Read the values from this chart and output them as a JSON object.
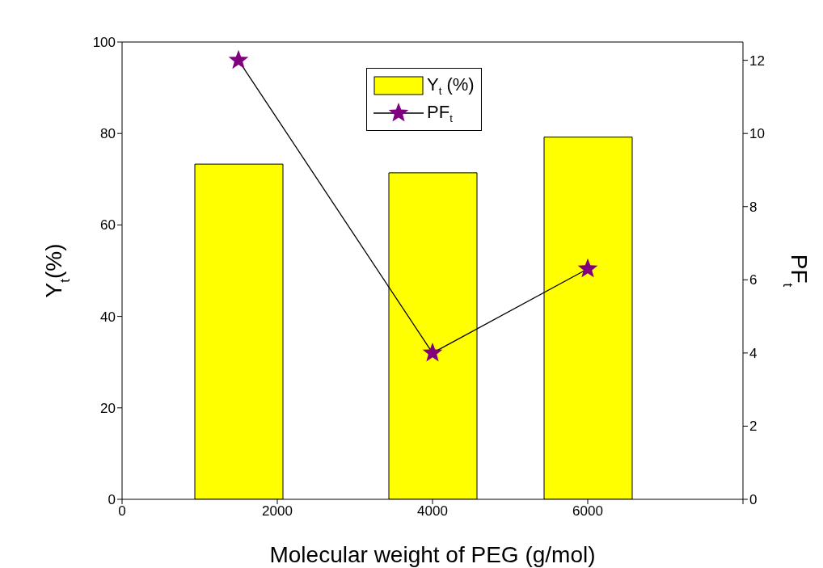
{
  "chart_data": {
    "type": "bar",
    "xlabel": "Molecular weight of PEG (g/mol)",
    "ylabel": "Y$_{t}$(%)",
    "y2label": "PF$_{t}$",
    "x": [
      1500,
      4000,
      6000
    ],
    "series": [
      {
        "name": "Y$_{t}$ (%)",
        "color": "#ffff00",
        "values": [
          73.3,
          71.4,
          79.2
        ]
      },
      {
        "type": "line",
        "axis": "y2",
        "name": "PF$_{t}$",
        "color": "#800080",
        "values": [
          12,
          4,
          6.3
        ]
      }
    ],
    "xlim": [
      0,
      8000
    ],
    "xticks": [
      0,
      2000,
      4000,
      6000,
      {
        "value": 8000,
        "label": null
      }
    ],
    "ylim": [
      0,
      100
    ],
    "yticks": [
      0,
      20,
      40,
      60,
      80,
      100
    ],
    "y2lim": [
      0,
      12.5
    ],
    "y2ticks": [
      0,
      2,
      4,
      6,
      8,
      10,
      12
    ],
    "marker": "star",
    "legend": "top",
    "grid": false
  }
}
